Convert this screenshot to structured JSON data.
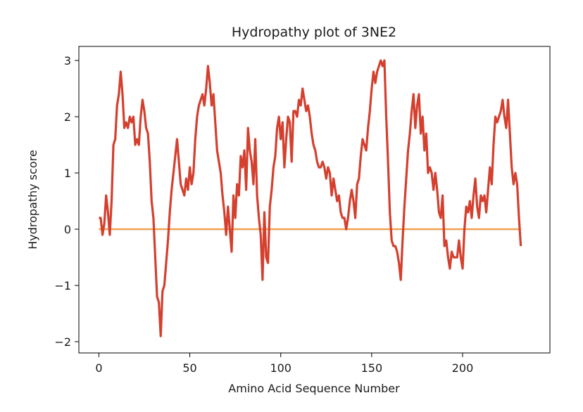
{
  "chart_data": {
    "type": "line",
    "title": "Hydropathy plot of 3NE2",
    "xlabel": "Amino Acid Sequence Number",
    "ylabel": "Hydropathy score",
    "xlim": [
      -11,
      248
    ],
    "ylim": [
      -2.2,
      3.25
    ],
    "x_ticks": [
      0,
      50,
      100,
      150,
      200
    ],
    "y_ticks": [
      -2,
      -1,
      0,
      1,
      2,
      3
    ],
    "x_tick_labels": [
      "0",
      "50",
      "100",
      "150",
      "200"
    ],
    "y_tick_labels": [
      "−2",
      "−1",
      "0",
      "1",
      "2",
      "3"
    ],
    "grid": false,
    "colors": {
      "hydropathy": "#d43f2e",
      "baseline": "#f0a050"
    },
    "series": [
      {
        "points": [
          [
            0,
            0.2
          ],
          [
            1,
            0.2
          ],
          [
            2,
            -0.1
          ],
          [
            3,
            0.1
          ],
          [
            4,
            0.6
          ],
          [
            5,
            0.3
          ],
          [
            6,
            -0.1
          ],
          [
            7,
            0.5
          ],
          [
            8,
            1.5
          ],
          [
            9,
            1.6
          ],
          [
            10,
            2.2
          ],
          [
            11,
            2.4
          ],
          [
            12,
            2.8
          ],
          [
            13,
            2.4
          ],
          [
            14,
            1.8
          ],
          [
            15,
            1.9
          ],
          [
            16,
            1.8
          ],
          [
            17,
            2.0
          ],
          [
            18,
            1.9
          ],
          [
            19,
            2.0
          ],
          [
            20,
            1.5
          ],
          [
            21,
            1.6
          ],
          [
            22,
            1.5
          ],
          [
            23,
            2.0
          ],
          [
            24,
            2.3
          ],
          [
            25,
            2.1
          ],
          [
            26,
            1.8
          ],
          [
            27,
            1.7
          ],
          [
            28,
            1.2
          ],
          [
            29,
            0.5
          ],
          [
            30,
            0.2
          ],
          [
            31,
            -0.5
          ],
          [
            32,
            -1.2
          ],
          [
            33,
            -1.3
          ],
          [
            34,
            -1.9
          ],
          [
            35,
            -1.1
          ],
          [
            36,
            -1.0
          ],
          [
            37,
            -0.6
          ],
          [
            38,
            -0.2
          ],
          [
            39,
            0.3
          ],
          [
            40,
            0.7
          ],
          [
            41,
            1.0
          ],
          [
            42,
            1.3
          ],
          [
            43,
            1.6
          ],
          [
            44,
            1.2
          ],
          [
            45,
            0.8
          ],
          [
            46,
            0.7
          ],
          [
            47,
            0.6
          ],
          [
            48,
            0.9
          ],
          [
            49,
            0.7
          ],
          [
            50,
            1.1
          ],
          [
            51,
            0.8
          ],
          [
            52,
            1.0
          ],
          [
            53,
            1.6
          ],
          [
            54,
            2.0
          ],
          [
            55,
            2.2
          ],
          [
            56,
            2.3
          ],
          [
            57,
            2.4
          ],
          [
            58,
            2.2
          ],
          [
            59,
            2.5
          ],
          [
            60,
            2.9
          ],
          [
            61,
            2.6
          ],
          [
            62,
            2.2
          ],
          [
            63,
            2.4
          ],
          [
            64,
            1.9
          ],
          [
            65,
            1.4
          ],
          [
            66,
            1.2
          ],
          [
            67,
            1.0
          ],
          [
            68,
            0.6
          ],
          [
            69,
            0.3
          ],
          [
            70,
            -0.1
          ],
          [
            71,
            0.4
          ],
          [
            72,
            0.0
          ],
          [
            73,
            -0.4
          ],
          [
            74,
            0.6
          ],
          [
            75,
            0.2
          ],
          [
            76,
            0.8
          ],
          [
            77,
            0.6
          ],
          [
            78,
            1.3
          ],
          [
            79,
            1.1
          ],
          [
            80,
            1.4
          ],
          [
            81,
            0.7
          ],
          [
            82,
            1.8
          ],
          [
            83,
            1.4
          ],
          [
            84,
            1.2
          ],
          [
            85,
            0.8
          ],
          [
            86,
            1.6
          ],
          [
            87,
            0.6
          ],
          [
            88,
            0.2
          ],
          [
            89,
            -0.1
          ],
          [
            90,
            -0.9
          ],
          [
            91,
            0.3
          ],
          [
            92,
            -0.5
          ],
          [
            93,
            -0.6
          ],
          [
            94,
            0.4
          ],
          [
            95,
            0.7
          ],
          [
            96,
            1.1
          ],
          [
            97,
            1.3
          ],
          [
            98,
            1.8
          ],
          [
            99,
            2.0
          ],
          [
            100,
            1.6
          ],
          [
            101,
            1.9
          ],
          [
            102,
            1.1
          ],
          [
            103,
            1.6
          ],
          [
            104,
            2.0
          ],
          [
            105,
            1.9
          ],
          [
            106,
            1.2
          ],
          [
            107,
            2.1
          ],
          [
            108,
            2.1
          ],
          [
            109,
            2.0
          ],
          [
            110,
            2.3
          ],
          [
            111,
            2.2
          ],
          [
            112,
            2.5
          ],
          [
            113,
            2.3
          ],
          [
            114,
            2.1
          ],
          [
            115,
            2.2
          ],
          [
            116,
            2.0
          ],
          [
            117,
            1.7
          ],
          [
            118,
            1.5
          ],
          [
            119,
            1.4
          ],
          [
            120,
            1.2
          ],
          [
            121,
            1.1
          ],
          [
            122,
            1.1
          ],
          [
            123,
            1.2
          ],
          [
            124,
            1.1
          ],
          [
            125,
            0.9
          ],
          [
            126,
            1.1
          ],
          [
            127,
            1.0
          ],
          [
            128,
            0.6
          ],
          [
            129,
            0.9
          ],
          [
            130,
            0.7
          ],
          [
            131,
            0.5
          ],
          [
            132,
            0.6
          ],
          [
            133,
            0.3
          ],
          [
            134,
            0.2
          ],
          [
            135,
            0.2
          ],
          [
            136,
            0.0
          ],
          [
            137,
            0.2
          ],
          [
            138,
            0.5
          ],
          [
            139,
            0.7
          ],
          [
            140,
            0.5
          ],
          [
            141,
            0.2
          ],
          [
            142,
            0.8
          ],
          [
            143,
            0.9
          ],
          [
            144,
            1.3
          ],
          [
            145,
            1.6
          ],
          [
            146,
            1.5
          ],
          [
            147,
            1.4
          ],
          [
            148,
            1.8
          ],
          [
            149,
            2.1
          ],
          [
            150,
            2.5
          ],
          [
            151,
            2.8
          ],
          [
            152,
            2.6
          ],
          [
            153,
            2.8
          ],
          [
            154,
            2.9
          ],
          [
            155,
            3.0
          ],
          [
            156,
            2.9
          ],
          [
            157,
            3.0
          ],
          [
            158,
            2.0
          ],
          [
            159,
            1.2
          ],
          [
            160,
            0.3
          ],
          [
            161,
            -0.2
          ],
          [
            162,
            -0.3
          ],
          [
            163,
            -0.3
          ],
          [
            164,
            -0.4
          ],
          [
            165,
            -0.6
          ],
          [
            166,
            -0.9
          ],
          [
            167,
            -0.2
          ],
          [
            168,
            0.4
          ],
          [
            169,
            0.9
          ],
          [
            170,
            1.4
          ],
          [
            171,
            1.7
          ],
          [
            172,
            2.1
          ],
          [
            173,
            2.4
          ],
          [
            174,
            1.8
          ],
          [
            175,
            2.2
          ],
          [
            176,
            2.4
          ],
          [
            177,
            1.7
          ],
          [
            178,
            2.0
          ],
          [
            179,
            1.4
          ],
          [
            180,
            1.7
          ],
          [
            181,
            1.0
          ],
          [
            182,
            1.1
          ],
          [
            183,
            1.0
          ],
          [
            184,
            0.7
          ],
          [
            185,
            1.0
          ],
          [
            186,
            0.7
          ],
          [
            187,
            0.3
          ],
          [
            188,
            0.2
          ],
          [
            189,
            0.6
          ],
          [
            190,
            -0.3
          ],
          [
            191,
            -0.2
          ],
          [
            192,
            -0.5
          ],
          [
            193,
            -0.7
          ],
          [
            194,
            -0.4
          ],
          [
            195,
            -0.5
          ],
          [
            196,
            -0.5
          ],
          [
            197,
            -0.5
          ],
          [
            198,
            -0.2
          ],
          [
            199,
            -0.5
          ],
          [
            200,
            -0.7
          ],
          [
            201,
            0.0
          ],
          [
            202,
            0.4
          ],
          [
            203,
            0.3
          ],
          [
            204,
            0.5
          ],
          [
            205,
            0.2
          ],
          [
            206,
            0.6
          ],
          [
            207,
            0.9
          ],
          [
            208,
            0.4
          ],
          [
            209,
            0.2
          ],
          [
            210,
            0.6
          ],
          [
            211,
            0.5
          ],
          [
            212,
            0.6
          ],
          [
            213,
            0.3
          ],
          [
            214,
            0.7
          ],
          [
            215,
            1.1
          ],
          [
            216,
            0.8
          ],
          [
            217,
            1.5
          ],
          [
            218,
            2.0
          ],
          [
            219,
            1.9
          ],
          [
            220,
            2.0
          ],
          [
            221,
            2.1
          ],
          [
            222,
            2.3
          ],
          [
            223,
            2.0
          ],
          [
            224,
            1.8
          ],
          [
            225,
            2.3
          ],
          [
            226,
            1.7
          ],
          [
            227,
            1.1
          ],
          [
            228,
            0.8
          ],
          [
            229,
            1.0
          ],
          [
            230,
            0.8
          ],
          [
            231,
            0.2
          ],
          [
            232,
            -0.3
          ]
        ]
      },
      {
        "points": [
          [
            0,
            0.0
          ],
          [
            232,
            0.0
          ]
        ]
      }
    ]
  }
}
